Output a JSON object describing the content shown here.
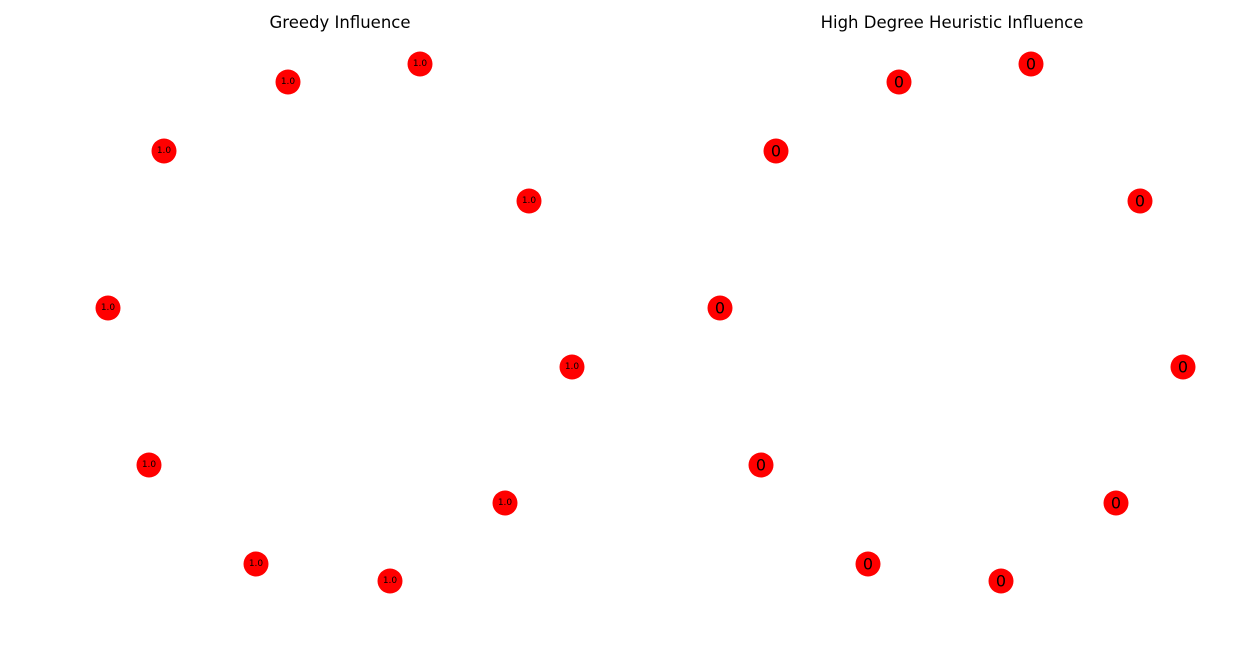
{
  "left_graph": {
    "title": "Greedy Influence",
    "node_color": "#ff0000",
    "nodes": [
      {
        "label": "1.0"
      },
      {
        "label": "1.0"
      },
      {
        "label": "1.0"
      },
      {
        "label": "1.0"
      },
      {
        "label": "1.0"
      },
      {
        "label": "1.0"
      },
      {
        "label": "1.0"
      },
      {
        "label": "1.0"
      },
      {
        "label": "1.0"
      },
      {
        "label": "1.0"
      }
    ]
  },
  "right_graph": {
    "title": "High Degree Heuristic Influence",
    "node_color": "#ff0000",
    "nodes": [
      {
        "label": "0"
      },
      {
        "label": "0"
      },
      {
        "label": "0"
      },
      {
        "label": "0"
      },
      {
        "label": "0"
      },
      {
        "label": "0"
      },
      {
        "label": "0"
      },
      {
        "label": "0"
      },
      {
        "label": "0"
      },
      {
        "label": "0"
      }
    ]
  }
}
